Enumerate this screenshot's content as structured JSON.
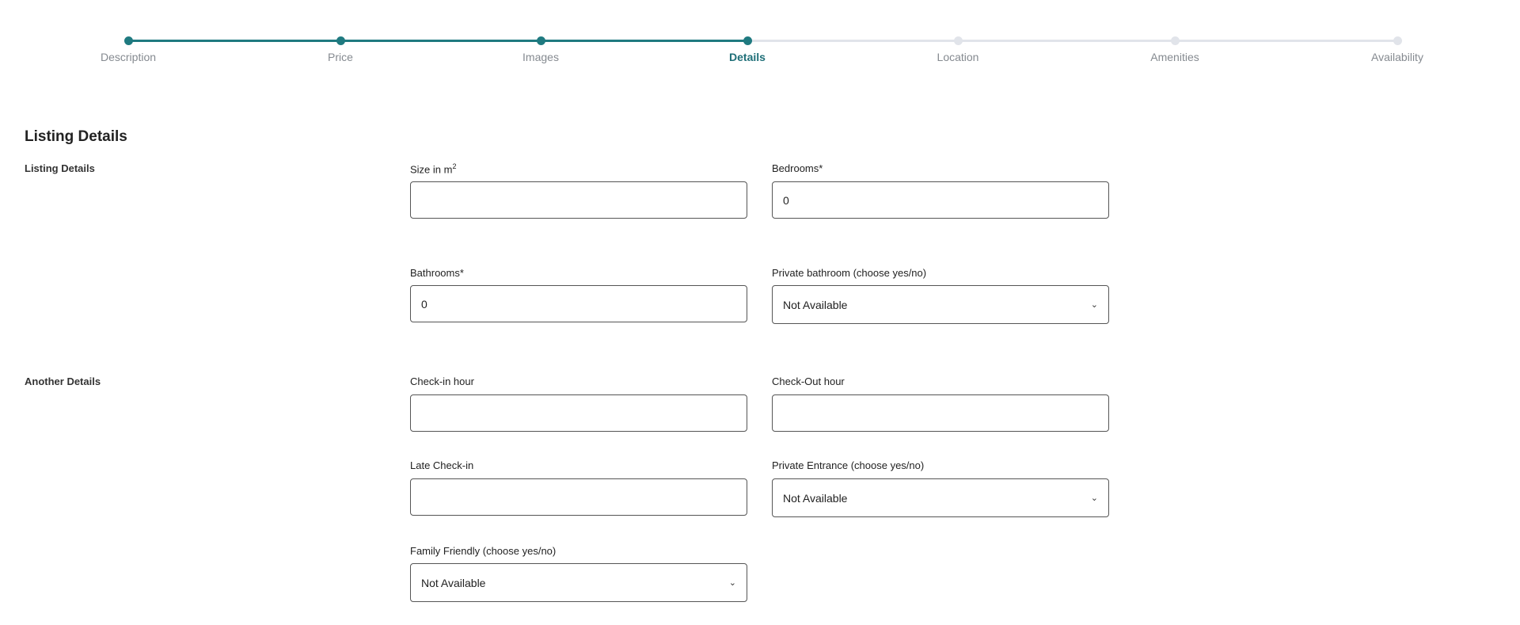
{
  "stepper": {
    "steps": [
      {
        "label": "Description",
        "state": "done"
      },
      {
        "label": "Price",
        "state": "done"
      },
      {
        "label": "Images",
        "state": "done"
      },
      {
        "label": "Details",
        "state": "active"
      },
      {
        "label": "Location",
        "state": "todo"
      },
      {
        "label": "Amenities",
        "state": "todo"
      },
      {
        "label": "Availability",
        "state": "todo"
      }
    ],
    "colors": {
      "done": "#1f7a80",
      "todo": "#e1e4ea"
    }
  },
  "page_title": "Listing Details",
  "sections": {
    "listing": "Listing Details",
    "another": "Another Details"
  },
  "fields": {
    "size": {
      "label": "Size in m",
      "sup": "2",
      "value": ""
    },
    "bedrooms": {
      "label": "Bedrooms*",
      "value": "0"
    },
    "bathrooms": {
      "label": "Bathrooms*",
      "value": "0"
    },
    "private_bathroom": {
      "label": "Private bathroom (choose yes/no)",
      "value": "Not Available"
    },
    "checkin": {
      "label": "Check-in hour",
      "value": ""
    },
    "checkout": {
      "label": "Check-Out hour",
      "value": ""
    },
    "late_checkin": {
      "label": "Late Check-in",
      "value": ""
    },
    "private_entrance": {
      "label": "Private Entrance (choose yes/no)",
      "value": "Not Available"
    },
    "family_friendly": {
      "label": "Family Friendly (choose yes/no)",
      "value": "Not Available"
    }
  }
}
